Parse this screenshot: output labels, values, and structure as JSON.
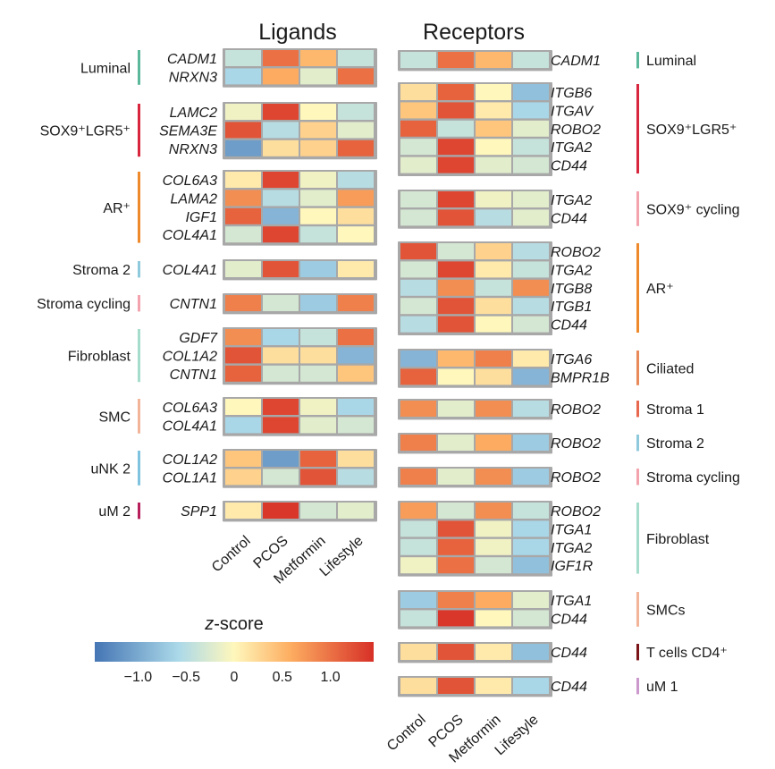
{
  "chart_data": {
    "type": "heatmap",
    "columns": [
      "Control",
      "PCOS",
      "Metformin",
      "Lifestyle"
    ],
    "colorbar": {
      "title": "z-score",
      "min": -1.45,
      "max": 1.45,
      "ticks": [
        "−1.0",
        "−0.5",
        "0",
        "0.5",
        "1.0"
      ],
      "tick_values": [
        -1.0,
        -0.5,
        0,
        0.5,
        1.0
      ],
      "colors": [
        "#4575b4",
        "#abd9e9",
        "#fff7bc",
        "#fdae61",
        "#d73027"
      ]
    },
    "panels": [
      {
        "title": "Ligands",
        "groups": [
          {
            "cell": "Luminal",
            "sup": "",
            "color": "#5bb89a",
            "rows": [
              {
                "gene": "CADM1",
                "z": [
                  -0.4,
                  1.0,
                  0.5,
                  -0.4
                ]
              },
              {
                "gene": "NRXN3",
                "z": [
                  -0.6,
                  0.6,
                  -0.2,
                  1.0
                ]
              }
            ]
          },
          {
            "cell": "SOX9⁺LGR5⁺",
            "sup": "",
            "color": "#d7263d",
            "rows": [
              {
                "gene": "LAMC2",
                "z": [
                  -0.1,
                  1.3,
                  0.0,
                  -0.4
                ]
              },
              {
                "gene": "SEMA3E",
                "z": [
                  1.2,
                  -0.5,
                  0.3,
                  -0.2
                ]
              },
              {
                "gene": "NRXN3",
                "z": [
                  -1.1,
                  0.2,
                  0.3,
                  1.1
                ]
              }
            ]
          },
          {
            "cell": "AR⁺",
            "sup": "",
            "color": "#ef8a2c",
            "rows": [
              {
                "gene": "COL6A3",
                "z": [
                  0.1,
                  1.3,
                  -0.1,
                  -0.5
                ]
              },
              {
                "gene": "LAMA2",
                "z": [
                  0.8,
                  -0.5,
                  -0.2,
                  0.7
                ]
              },
              {
                "gene": "IGF1",
                "z": [
                  1.1,
                  -0.9,
                  0.0,
                  0.2
                ]
              },
              {
                "gene": "COL4A1",
                "z": [
                  -0.3,
                  1.3,
                  -0.4,
                  0.0
                ]
              }
            ]
          },
          {
            "cell": "Stroma 2",
            "sup": "",
            "color": "#8ec9dc",
            "rows": [
              {
                "gene": "COL4A1",
                "z": [
                  -0.2,
                  1.2,
                  -0.7,
                  0.1
                ]
              }
            ]
          },
          {
            "cell": "Stroma cycling",
            "sup": "",
            "color": "#f2a3ad",
            "rows": [
              {
                "gene": "CNTN1",
                "z": [
                  0.9,
                  -0.3,
                  -0.7,
                  0.9
                ]
              }
            ]
          },
          {
            "cell": "Fibroblast",
            "sup": "",
            "color": "#a6dccb",
            "rows": [
              {
                "gene": "GDF7",
                "z": [
                  0.8,
                  -0.6,
                  -0.4,
                  1.0
                ]
              },
              {
                "gene": "COL1A2",
                "z": [
                  1.2,
                  0.2,
                  0.2,
                  -0.9
                ]
              },
              {
                "gene": "CNTN1",
                "z": [
                  1.1,
                  -0.3,
                  -0.3,
                  0.4
                ]
              }
            ]
          },
          {
            "cell": "SMC",
            "sup": "",
            "color": "#f2b59a",
            "rows": [
              {
                "gene": "COL6A3",
                "z": [
                  0.0,
                  1.3,
                  -0.1,
                  -0.6
                ]
              },
              {
                "gene": "COL4A1",
                "z": [
                  -0.6,
                  1.3,
                  -0.2,
                  -0.3
                ]
              }
            ]
          },
          {
            "cell": "uNK 2",
            "sup": "",
            "color": "#7fc3e0",
            "rows": [
              {
                "gene": "COL1A2",
                "z": [
                  0.4,
                  -1.1,
                  1.1,
                  0.2
                ]
              },
              {
                "gene": "COL1A1",
                "z": [
                  0.3,
                  -0.3,
                  1.2,
                  -0.5
                ]
              }
            ]
          },
          {
            "cell": "uM 2",
            "sup": "",
            "color": "#b7205a",
            "rows": [
              {
                "gene": "SPP1",
                "z": [
                  0.1,
                  1.4,
                  -0.3,
                  -0.2
                ]
              }
            ]
          }
        ]
      },
      {
        "title": "Receptors",
        "groups": [
          {
            "cell": "Luminal",
            "sup": "",
            "color": "#5bb89a",
            "rows": [
              {
                "gene": "CADM1",
                "z": [
                  -0.4,
                  1.0,
                  0.5,
                  -0.4
                ]
              }
            ]
          },
          {
            "cell": "SOX9⁺LGR5⁺",
            "sup": "",
            "color": "#d7263d",
            "rows": [
              {
                "gene": "ITGB6",
                "z": [
                  0.2,
                  1.1,
                  0.0,
                  -0.8
                ]
              },
              {
                "gene": "ITGAV",
                "z": [
                  0.4,
                  1.2,
                  0.1,
                  -0.6
                ]
              },
              {
                "gene": "ROBO2",
                "z": [
                  1.1,
                  -0.4,
                  0.4,
                  -0.2
                ]
              },
              {
                "gene": "ITGA2",
                "z": [
                  -0.3,
                  1.3,
                  0.0,
                  -0.4
                ]
              },
              {
                "gene": "CD44",
                "z": [
                  -0.2,
                  1.3,
                  -0.2,
                  -0.3
                ]
              }
            ]
          },
          {
            "cell": "SOX9⁺ cycling",
            "sup": "",
            "color": "#f2a3ad",
            "rows": [
              {
                "gene": "ITGA2",
                "z": [
                  -0.3,
                  1.3,
                  -0.1,
                  -0.2
                ]
              },
              {
                "gene": "CD44",
                "z": [
                  -0.3,
                  1.2,
                  -0.5,
                  -0.2
                ]
              }
            ]
          },
          {
            "cell": "AR⁺",
            "sup": "",
            "color": "#ef8a2c",
            "rows": [
              {
                "gene": "ROBO2",
                "z": [
                  1.2,
                  -0.3,
                  0.3,
                  -0.5
                ]
              },
              {
                "gene": "ITGA2",
                "z": [
                  -0.3,
                  1.3,
                  0.1,
                  -0.4
                ]
              },
              {
                "gene": "ITGB8",
                "z": [
                  -0.5,
                  0.8,
                  -0.4,
                  0.8
                ]
              },
              {
                "gene": "ITGB1",
                "z": [
                  -0.3,
                  1.2,
                  0.2,
                  -0.5
                ]
              },
              {
                "gene": "CD44",
                "z": [
                  -0.5,
                  1.2,
                  0.0,
                  -0.3
                ]
              }
            ]
          },
          {
            "cell": "Ciliated",
            "sup": "",
            "color": "#e88a5a",
            "rows": [
              {
                "gene": "ITGA6",
                "z": [
                  -0.9,
                  0.5,
                  0.9,
                  0.1
                ]
              },
              {
                "gene": "BMPR1B",
                "z": [
                  1.1,
                  0.0,
                  0.2,
                  -0.9
                ]
              }
            ]
          },
          {
            "cell": "Stroma 1",
            "sup": "",
            "color": "#e8684f",
            "rows": [
              {
                "gene": "ROBO2",
                "z": [
                  0.8,
                  -0.2,
                  0.8,
                  -0.5
                ]
              }
            ]
          },
          {
            "cell": "Stroma 2",
            "sup": "",
            "color": "#8ec9dc",
            "rows": [
              {
                "gene": "ROBO2",
                "z": [
                  0.9,
                  -0.2,
                  0.6,
                  -0.7
                ]
              }
            ]
          },
          {
            "cell": "Stroma cycling",
            "sup": "",
            "color": "#f2a3ad",
            "rows": [
              {
                "gene": "ROBO2",
                "z": [
                  0.9,
                  -0.2,
                  0.8,
                  -0.7
                ]
              }
            ]
          },
          {
            "cell": "Fibroblast",
            "sup": "",
            "color": "#a6dccb",
            "rows": [
              {
                "gene": "ROBO2",
                "z": [
                  0.7,
                  -0.3,
                  0.8,
                  -0.4
                ]
              },
              {
                "gene": "ITGA1",
                "z": [
                  -0.4,
                  1.2,
                  -0.1,
                  -0.6
                ]
              },
              {
                "gene": "ITGA2",
                "z": [
                  -0.4,
                  1.1,
                  -0.1,
                  -0.6
                ]
              },
              {
                "gene": "IGF1R",
                "z": [
                  -0.1,
                  1.0,
                  -0.3,
                  -0.8
                ]
              }
            ]
          },
          {
            "cell": "SMCs",
            "sup": "",
            "color": "#f2b59a",
            "rows": [
              {
                "gene": "ITGA1",
                "z": [
                  -0.7,
                  0.9,
                  0.6,
                  -0.2
                ]
              },
              {
                "gene": "CD44",
                "z": [
                  -0.4,
                  1.4,
                  0.0,
                  -0.3
                ]
              }
            ]
          },
          {
            "cell": "T cells CD4⁺",
            "sup": "",
            "color": "#7a1418",
            "rows": [
              {
                "gene": "CD44",
                "z": [
                  0.2,
                  1.2,
                  0.1,
                  -0.8
                ]
              }
            ]
          },
          {
            "cell": "uM 1",
            "sup": "",
            "color": "#cc99cc",
            "rows": [
              {
                "gene": "CD44",
                "z": [
                  0.2,
                  1.2,
                  0.1,
                  -0.6
                ]
              }
            ]
          }
        ]
      }
    ]
  }
}
